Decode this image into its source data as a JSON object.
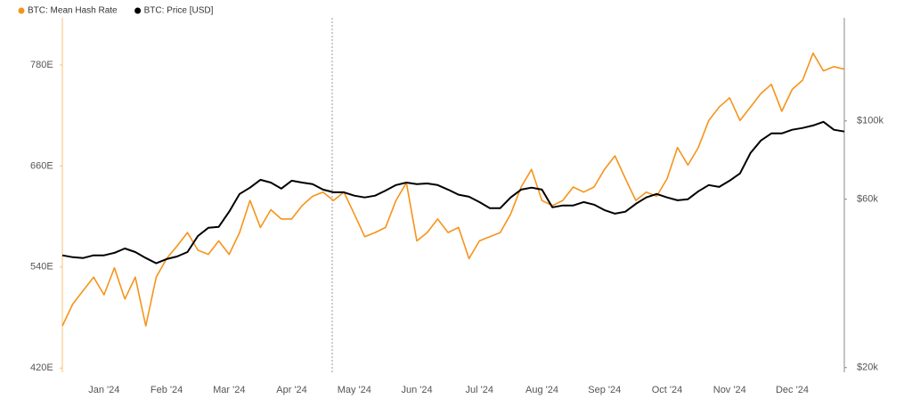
{
  "chart_data": {
    "type": "line",
    "categories": [
      null,
      null,
      null,
      null,
      "Jan '24",
      null,
      null,
      null,
      null,
      null,
      "Feb '24",
      null,
      null,
      null,
      null,
      null,
      "Mar '24",
      null,
      null,
      null,
      null,
      null,
      "Apr '24",
      null,
      null,
      null,
      null,
      null,
      "May '24",
      null,
      null,
      null,
      null,
      null,
      "Jun '24",
      null,
      null,
      null,
      null,
      null,
      "Jul '24",
      null,
      null,
      null,
      null,
      null,
      "Aug '24",
      null,
      null,
      null,
      null,
      null,
      "Sep '24",
      null,
      null,
      null,
      null,
      null,
      "Oct '24",
      null,
      null,
      null,
      null,
      null,
      "Nov '24",
      null,
      null,
      null,
      null,
      null,
      "Dec '24",
      null,
      null,
      null,
      null,
      null
    ],
    "series": [
      {
        "name": "BTC: Mean Hash Rate",
        "color": "#f7931a",
        "axis": "y",
        "values": [
          470,
          496,
          512,
          528,
          507,
          539,
          502,
          528,
          470,
          528,
          550,
          565,
          581,
          560,
          555,
          571,
          555,
          581,
          619,
          587,
          608,
          597,
          597,
          613,
          624,
          629,
          619,
          629,
          603,
          576,
          581,
          587,
          619,
          640,
          571,
          581,
          597,
          581,
          587,
          550,
          571,
          576,
          581,
          603,
          635,
          656,
          619,
          613,
          619,
          635,
          629,
          635,
          656,
          672,
          645,
          619,
          629,
          624,
          645,
          682,
          661,
          682,
          714,
          730,
          741,
          714,
          730,
          746,
          757,
          725,
          751,
          762,
          794,
          773,
          778,
          775
        ]
      },
      {
        "name": "BTC: Price [USD]",
        "color": "#000000",
        "axis": "y2",
        "values": [
          41600,
          41100,
          40900,
          41600,
          41600,
          42300,
          43500,
          42500,
          40900,
          39500,
          40600,
          41300,
          42500,
          47200,
          49800,
          50100,
          55300,
          62100,
          64700,
          68100,
          66900,
          64300,
          67700,
          66900,
          66200,
          63900,
          62800,
          62800,
          61400,
          60700,
          61400,
          63500,
          65800,
          66900,
          66200,
          66500,
          65800,
          63900,
          61800,
          61000,
          58900,
          56600,
          56600,
          60700,
          63900,
          64700,
          63900,
          56900,
          57600,
          57600,
          58900,
          57900,
          55900,
          54600,
          55300,
          58200,
          60700,
          62100,
          60700,
          59600,
          60000,
          63200,
          65800,
          65000,
          67700,
          71000,
          81100,
          88000,
          92200,
          92200,
          94400,
          95500,
          97100,
          99400,
          94400,
          93300
        ]
      }
    ],
    "ylim": [
      415,
      836
    ],
    "yticks": [
      {
        "value": 420,
        "label": "420E"
      },
      {
        "value": 540,
        "label": "540E"
      },
      {
        "value": 660,
        "label": "660E"
      },
      {
        "value": 780,
        "label": "780E"
      }
    ],
    "y2lim": [
      19400,
      196000
    ],
    "y2ticks": [
      {
        "value": 20000,
        "label": "$20k"
      },
      {
        "value": 60000,
        "label": "$60k"
      },
      {
        "value": 100000,
        "label": "$100k"
      }
    ],
    "y2_log": true,
    "legend": "top-left"
  }
}
